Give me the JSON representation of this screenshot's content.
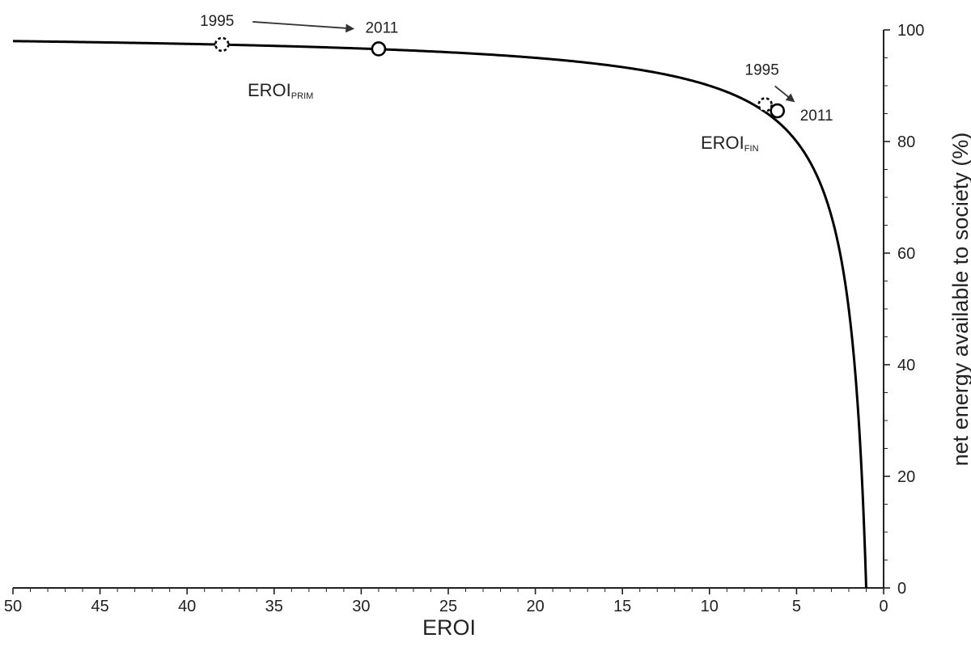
{
  "chart_data": {
    "type": "line",
    "xlabel": "EROI",
    "ylabel": "net energy available to society (%)",
    "xlim": [
      50,
      0
    ],
    "ylim": [
      0,
      100
    ],
    "x_reversed": true,
    "x_ticks": [
      50,
      45,
      40,
      35,
      30,
      25,
      20,
      15,
      10,
      5,
      0
    ],
    "y_ticks": [
      0,
      20,
      40,
      60,
      80,
      100
    ],
    "y_axis_side": "right",
    "grid": false,
    "series": [
      {
        "function": "100 * (1 - 1/EROI)",
        "x": [
          50,
          45,
          40,
          38,
          35,
          30,
          29,
          25,
          20,
          15,
          12,
          10,
          8,
          7,
          6,
          5,
          4,
          3,
          2.5,
          2,
          1.5,
          1.25,
          1.1,
          1
        ],
        "y": [
          98,
          97.8,
          97.5,
          97.4,
          97.1,
          96.7,
          96.6,
          96,
          95,
          93.3,
          91.7,
          90,
          87.5,
          85.7,
          83.3,
          80,
          75,
          66.7,
          60,
          50,
          33.3,
          20,
          9.1,
          0
        ]
      }
    ],
    "annotations": [
      {
        "label": "1995",
        "x": 38,
        "y": 97.4,
        "marker": "dashed-circle",
        "group": "EROIPRIM"
      },
      {
        "label": "2011",
        "x": 29,
        "y": 96.6,
        "marker": "circle",
        "group": "EROIPRIM"
      },
      {
        "label": "1995",
        "x": 6.8,
        "y": 86.6,
        "marker": "dashed-circle",
        "group": "EROIFIN"
      },
      {
        "label": "2011",
        "x": 6.1,
        "y": 85.5,
        "marker": "circle",
        "group": "EROIFIN"
      }
    ],
    "series_labels": [
      {
        "main": "EROI",
        "sub": "PRIM"
      },
      {
        "main": "EROI",
        "sub": "FIN"
      }
    ]
  }
}
